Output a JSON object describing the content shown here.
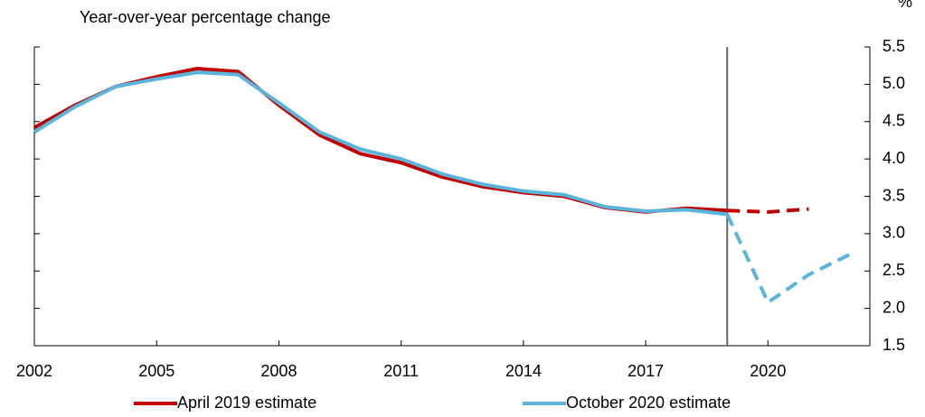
{
  "chart_data": {
    "type": "line",
    "subtitle": "Year-over-year percentage change",
    "y_unit": "%",
    "x": [
      2002,
      2003,
      2004,
      2005,
      2006,
      2007,
      2008,
      2009,
      2010,
      2011,
      2012,
      2013,
      2014,
      2015,
      2016,
      2017,
      2018,
      2019,
      2020,
      2021,
      2022
    ],
    "series": [
      {
        "name": "April 2019 estimate",
        "color": "#c00000",
        "values": [
          4.42,
          4.72,
          4.97,
          5.1,
          5.21,
          5.17,
          4.72,
          4.32,
          4.07,
          3.95,
          3.76,
          3.63,
          3.55,
          3.5,
          3.35,
          3.29,
          3.34,
          3.31,
          3.29,
          3.33,
          null
        ]
      },
      {
        "name": "October 2020 estimate",
        "color": "#5bb4dc",
        "values": [
          4.36,
          4.7,
          4.97,
          5.07,
          5.16,
          5.13,
          4.75,
          4.36,
          4.13,
          4.0,
          3.8,
          3.66,
          3.57,
          3.52,
          3.36,
          3.3,
          3.32,
          3.26,
          2.08,
          2.45,
          2.72
        ]
      }
    ],
    "vline": 2019,
    "xlim": [
      2002,
      2022.5
    ],
    "xticks": [
      2002,
      2005,
      2008,
      2011,
      2014,
      2017,
      2020
    ],
    "ylim": [
      1.5,
      5.5
    ],
    "yticks": [
      {
        "value": 1.5,
        "label": "1.5"
      },
      {
        "value": 2,
        "label": "2.0"
      },
      {
        "value": 2.5,
        "label": "2.5"
      },
      {
        "value": 3,
        "label": "3.0"
      },
      {
        "value": 3.5,
        "label": "3.5"
      },
      {
        "value": 4,
        "label": "4.0"
      },
      {
        "value": 4.5,
        "label": "4.5"
      },
      {
        "value": 5,
        "label": "5.0"
      },
      {
        "value": 5.5,
        "label": "5.5"
      }
    ]
  }
}
